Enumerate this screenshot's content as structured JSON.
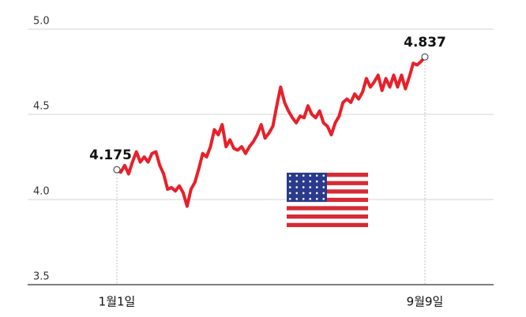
{
  "chart_data": {
    "type": "line",
    "categories": [
      "1월1일",
      null,
      null,
      null,
      null,
      null,
      null,
      null,
      null,
      null,
      null,
      null,
      null,
      null,
      null,
      null,
      null,
      null,
      null,
      null,
      null,
      null,
      null,
      null,
      null,
      null,
      null,
      null,
      null,
      null,
      null,
      null,
      null,
      null,
      null,
      null,
      null,
      null,
      null,
      null,
      null,
      null,
      null,
      null,
      null,
      null,
      null,
      null,
      null,
      null,
      null,
      null,
      null,
      null,
      null,
      null,
      null,
      null,
      null,
      null,
      null,
      null,
      null,
      null,
      null,
      null,
      null,
      null,
      null,
      null,
      null,
      null,
      null,
      null,
      null,
      null,
      null,
      null,
      null,
      "9월9일"
    ],
    "values": [
      4.175,
      4.16,
      4.2,
      4.15,
      4.22,
      4.28,
      4.22,
      4.25,
      4.22,
      4.27,
      4.28,
      4.2,
      4.15,
      4.06,
      4.07,
      4.05,
      4.08,
      4.04,
      3.96,
      4.06,
      4.1,
      4.18,
      4.27,
      4.25,
      4.31,
      4.41,
      4.38,
      4.44,
      4.31,
      4.35,
      4.3,
      4.29,
      4.31,
      4.27,
      4.31,
      4.34,
      4.38,
      4.44,
      4.36,
      4.39,
      4.43,
      4.55,
      4.66,
      4.57,
      4.52,
      4.48,
      4.45,
      4.49,
      4.48,
      4.55,
      4.5,
      4.48,
      4.52,
      4.45,
      4.43,
      4.38,
      4.45,
      4.49,
      4.57,
      4.59,
      4.57,
      4.62,
      4.59,
      4.63,
      4.71,
      4.66,
      4.69,
      4.73,
      4.64,
      4.71,
      4.66,
      4.73,
      4.66,
      4.73,
      4.65,
      4.72,
      4.8,
      4.79,
      4.81,
      4.837
    ],
    "color": "#e8202a",
    "ylim": [
      3.5,
      5.0
    ],
    "yticks": [
      {
        "value": 5.0,
        "label": "5.0"
      },
      4.5,
      {
        "value": 4.0,
        "label": "4.0"
      },
      3.5
    ],
    "grid": true
  }
}
